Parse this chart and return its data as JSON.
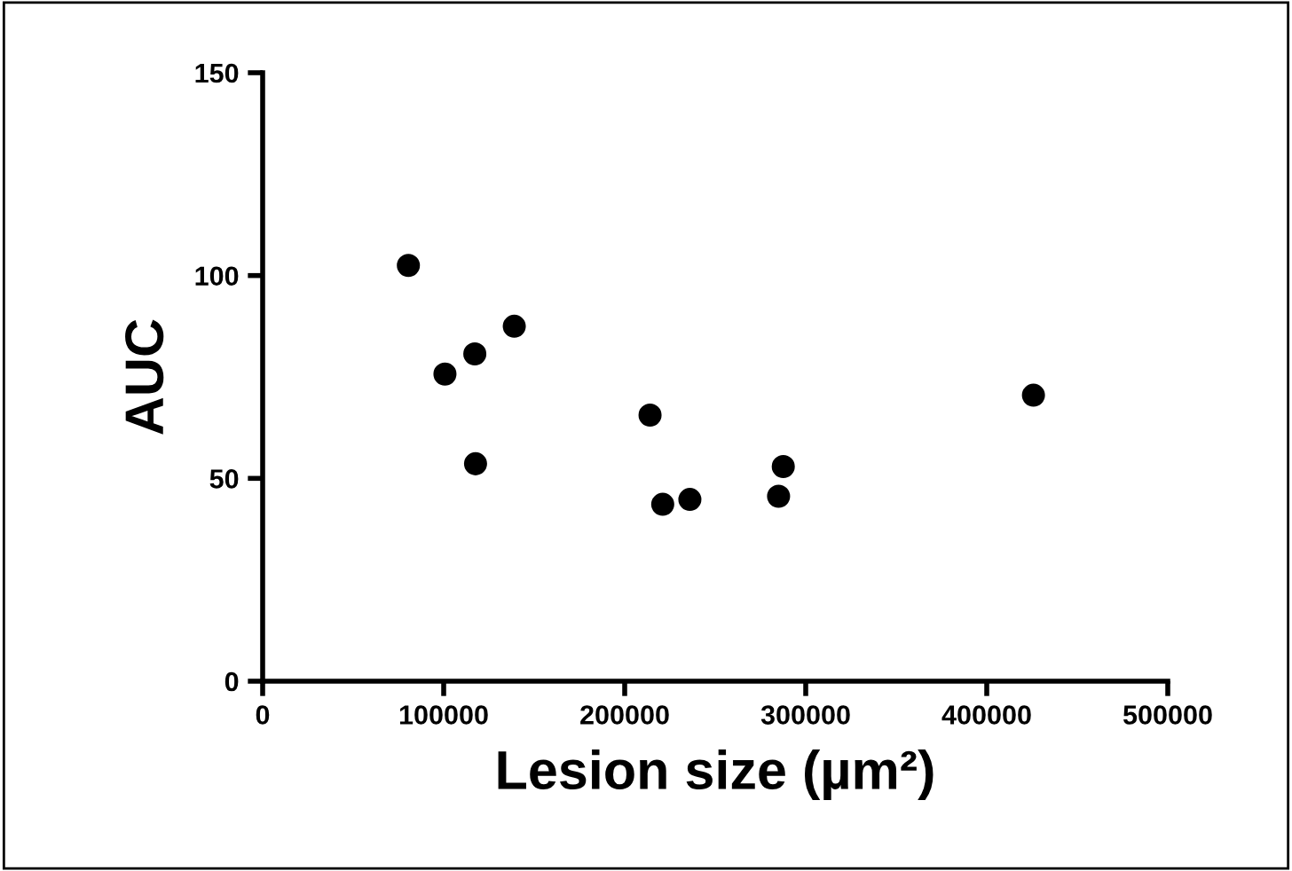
{
  "chart_data": {
    "type": "scatter",
    "xlabel": "Lesion size (µm²)",
    "ylabel": "AUC",
    "x": [
      80500,
      100700,
      117200,
      139000,
      117600,
      214000,
      221000,
      236000,
      287600,
      285000,
      425800
    ],
    "values": [
      102.5,
      75.7,
      80.7,
      87.5,
      53.6,
      65.6,
      43.6,
      44.8,
      52.9,
      45.6,
      70.5
    ],
    "color": "#000000",
    "marker": "circle",
    "xlim": [
      0,
      500000
    ],
    "xticks": [
      0,
      100000,
      200000,
      300000,
      400000,
      500000
    ],
    "ylim": [
      0,
      150
    ],
    "yticks": [
      0,
      50,
      100,
      150
    ],
    "grid": false,
    "legend": false
  }
}
